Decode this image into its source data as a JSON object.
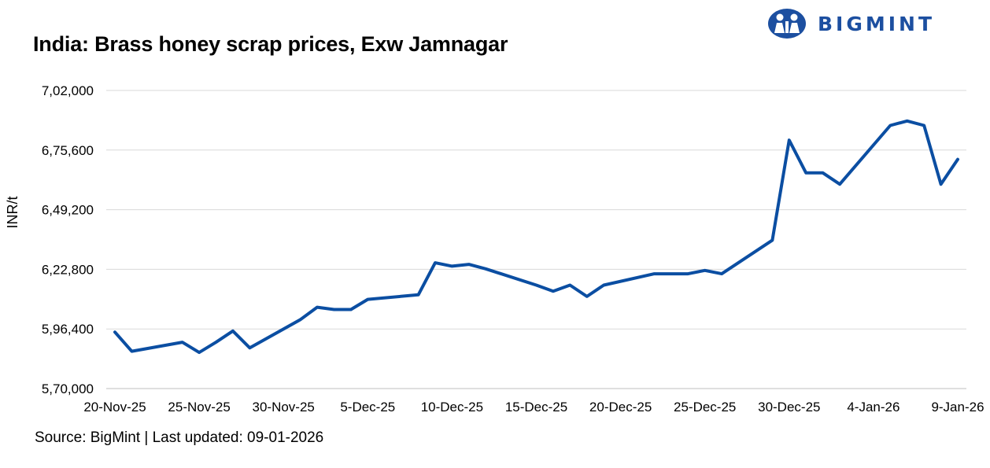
{
  "header": {
    "title": "India: Brass honey scrap prices, Exw Jamnagar",
    "brand": "BIGMINT"
  },
  "footer": {
    "source": "Source: BigMint | Last updated: 09-01-2026"
  },
  "colors": {
    "line": "#0b4ea2",
    "grid": "#d9d9d9",
    "brand": "#1c4fa0"
  },
  "chart_data": {
    "type": "line",
    "title": "India: Brass honey scrap prices, Exw Jamnagar",
    "xlabel": "",
    "ylabel": "INR/t",
    "ylim": [
      570000,
      702000
    ],
    "yticks": [
      570000,
      596400,
      622800,
      649200,
      675600,
      702000
    ],
    "ytick_labels": [
      "5,70,000",
      "5,96,400",
      "6,22,800",
      "6,49,200",
      "6,75,600",
      "7,02,000"
    ],
    "xlim": [
      "2025-11-20",
      "2026-01-09"
    ],
    "xticks": [
      "2025-11-20",
      "2025-11-25",
      "2025-11-30",
      "2025-12-05",
      "2025-12-10",
      "2025-12-15",
      "2025-12-20",
      "2025-12-25",
      "2025-12-30",
      "2026-01-04",
      "2026-01-09"
    ],
    "xtick_labels": [
      "20-Nov-25",
      "25-Nov-25",
      "30-Nov-25",
      "5-Dec-25",
      "10-Dec-25",
      "15-Dec-25",
      "20-Dec-25",
      "25-Dec-25",
      "30-Dec-25",
      "4-Jan-26",
      "9-Jan-26"
    ],
    "grid": true,
    "legend": "none",
    "series": [
      {
        "x": [
          "2025-11-20",
          "2025-11-21",
          "2025-11-24",
          "2025-11-25",
          "2025-11-26",
          "2025-11-27",
          "2025-11-28",
          "2025-12-01",
          "2025-12-02",
          "2025-12-03",
          "2025-12-04",
          "2025-12-05",
          "2025-12-08",
          "2025-12-09",
          "2025-12-10",
          "2025-12-11",
          "2025-12-12",
          "2025-12-15",
          "2025-12-16",
          "2025-12-17",
          "2025-12-18",
          "2025-12-19",
          "2025-12-22",
          "2025-12-23",
          "2025-12-24",
          "2025-12-25",
          "2025-12-26",
          "2025-12-29",
          "2025-12-30",
          "2025-12-31",
          "2026-01-01",
          "2026-01-02",
          "2026-01-05",
          "2026-01-06",
          "2026-01-07",
          "2026-01-08",
          "2026-01-09"
        ],
        "values": [
          595000,
          586500,
          590500,
          586000,
          590500,
          595500,
          588000,
          600500,
          606000,
          605000,
          605000,
          609500,
          611500,
          625700,
          624200,
          625000,
          623000,
          615800,
          613100,
          615800,
          610800,
          615800,
          620800,
          620800,
          620800,
          622300,
          620800,
          635700,
          680000,
          665500,
          665500,
          660500,
          686500,
          688500,
          686500,
          660500,
          671500
        ]
      }
    ]
  }
}
